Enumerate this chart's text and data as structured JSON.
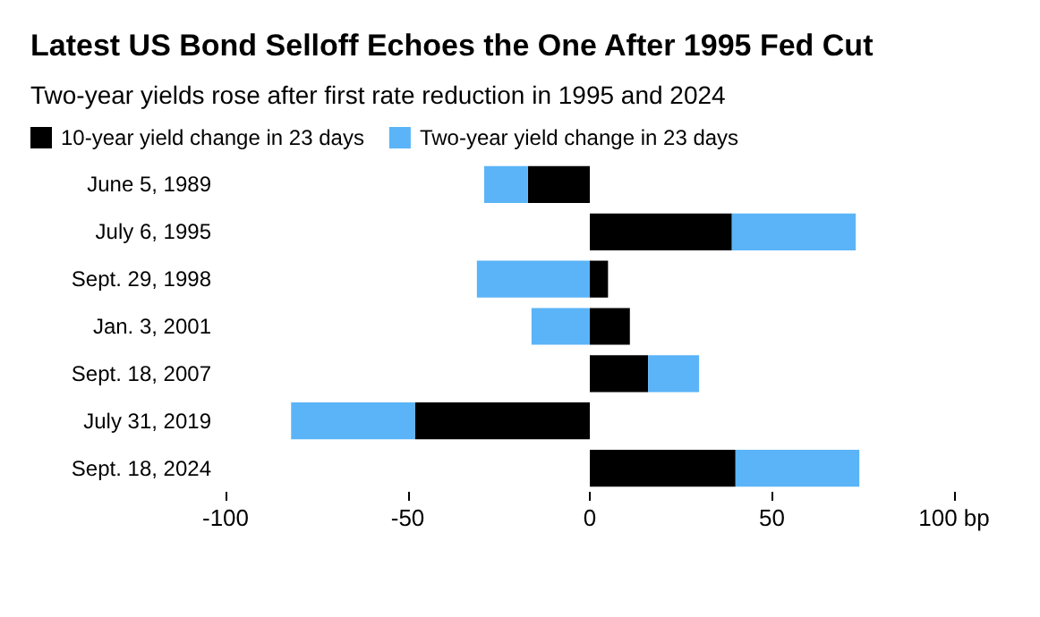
{
  "chart_data": {
    "type": "bar",
    "orientation": "horizontal",
    "stacked": true,
    "title": "Latest US Bond Selloff Echoes the One After 1995 Fed Cut",
    "subtitle": "Two-year yields rose after first rate reduction in 1995 and 2024",
    "categories": [
      "June 5, 1989",
      "July 6, 1995",
      "Sept. 29, 1998",
      "Jan. 3, 2001",
      "Sept. 18, 2007",
      "July 31, 2019",
      "Sept. 18, 2024"
    ],
    "series": [
      {
        "name": "10-year yield change in 23 days",
        "color": "#000000",
        "values": [
          -17,
          39,
          5,
          11,
          16,
          -48,
          40
        ]
      },
      {
        "name": "Two-year yield change in 23 days",
        "color": "#5ab4f7",
        "values": [
          -12,
          34,
          -31,
          -16,
          14,
          -34,
          34
        ]
      }
    ],
    "xlim": [
      -100,
      100
    ],
    "xticks": [
      -100,
      -50,
      0,
      50,
      {
        "value": 100,
        "label": "100 bp"
      }
    ],
    "grid": false,
    "legend": "top left"
  }
}
